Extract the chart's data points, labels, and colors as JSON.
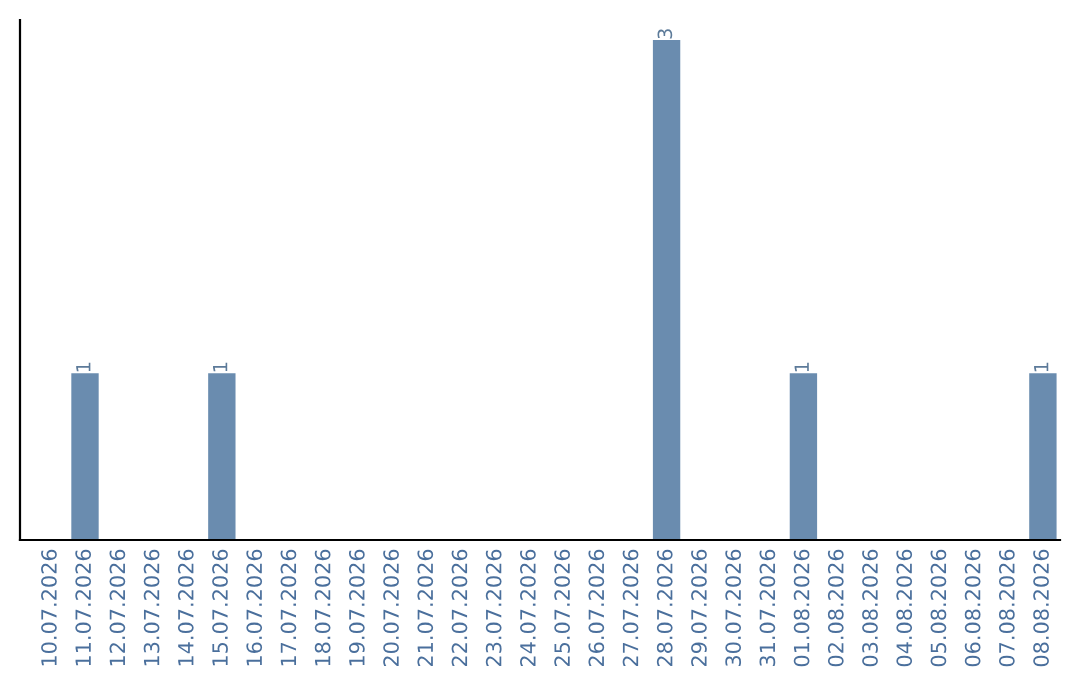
{
  "chart_data": {
    "type": "bar",
    "categories": [
      "10.07.2026",
      "11.07.2026",
      "12.07.2026",
      "13.07.2026",
      "14.07.2026",
      "15.07.2026",
      "16.07.2026",
      "17.07.2026",
      "18.07.2026",
      "19.07.2026",
      "20.07.2026",
      "21.07.2026",
      "22.07.2026",
      "23.07.2026",
      "24.07.2026",
      "25.07.2026",
      "26.07.2026",
      "27.07.2026",
      "28.07.2026",
      "29.07.2026",
      "30.07.2026",
      "31.07.2026",
      "01.08.2026",
      "02.08.2026",
      "03.08.2026",
      "04.08.2026",
      "05.08.2026",
      "06.08.2026",
      "07.08.2026",
      "08.08.2026"
    ],
    "values": [
      0,
      1,
      0,
      0,
      0,
      1,
      0,
      0,
      0,
      0,
      0,
      0,
      0,
      0,
      0,
      0,
      0,
      0,
      3,
      0,
      0,
      0,
      1,
      0,
      0,
      0,
      0,
      0,
      0,
      1
    ],
    "value_labels": [
      null,
      "1",
      null,
      null,
      null,
      "1",
      null,
      null,
      null,
      null,
      null,
      null,
      null,
      null,
      null,
      null,
      null,
      null,
      "3",
      null,
      null,
      null,
      "1",
      null,
      null,
      null,
      null,
      null,
      null,
      "1"
    ],
    "color": "#6a8caf",
    "tick_labels": "x",
    "grid": false,
    "legend": false
  }
}
